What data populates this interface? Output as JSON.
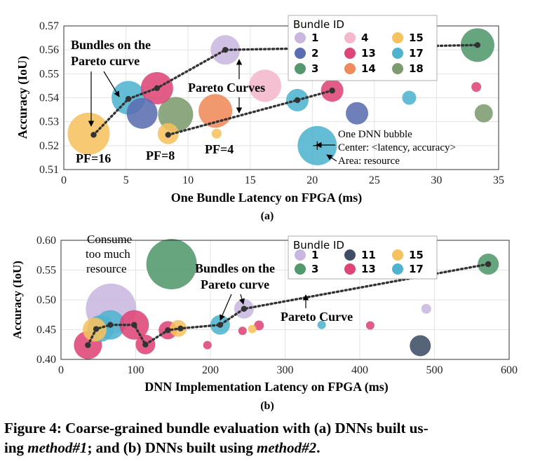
{
  "chart_data": [
    {
      "type": "scatter",
      "subplot_label": "(a)",
      "xlabel": "One Bundle Latency on FPGA (ms)",
      "ylabel": "Accuracy (IoU)",
      "xlim": [
        0,
        35
      ],
      "ylim": [
        0.51,
        0.57
      ],
      "xticks": [
        "0",
        "5",
        "10",
        "15",
        "20",
        "25",
        "30",
        "35"
      ],
      "yticks": [
        "0.51",
        "0.52",
        "0.53",
        "0.54",
        "0.55",
        "0.56",
        "0.57"
      ],
      "grid": true,
      "legend": {
        "title": "Bundle ID",
        "placement": "top-right",
        "columns": 3,
        "entries": [
          {
            "id": "1",
            "color": "#c9b7e0"
          },
          {
            "id": "4",
            "color": "#f4b8cc"
          },
          {
            "id": "15",
            "color": "#f6c25e"
          },
          {
            "id": "2",
            "color": "#5a6db0"
          },
          {
            "id": "13",
            "color": "#dd4676"
          },
          {
            "id": "17",
            "color": "#4fb3cf"
          },
          {
            "id": "3",
            "color": "#52996d"
          },
          {
            "id": "14",
            "color": "#f08a5b"
          },
          {
            "id": "18",
            "color": "#7d9b6e"
          }
        ]
      },
      "points": [
        {
          "x": 2.0,
          "y": 0.525,
          "bundle": "15",
          "size": 30
        },
        {
          "x": 5.2,
          "y": 0.54,
          "bundle": "17",
          "size": 24
        },
        {
          "x": 6.3,
          "y": 0.5335,
          "bundle": "2",
          "size": 22
        },
        {
          "x": 7.5,
          "y": 0.544,
          "bundle": "13",
          "size": 23
        },
        {
          "x": 9.0,
          "y": 0.533,
          "bundle": "18",
          "size": 25
        },
        {
          "x": 8.4,
          "y": 0.525,
          "bundle": "15",
          "size": 15
        },
        {
          "x": 12.2,
          "y": 0.5345,
          "bundle": "14",
          "size": 24
        },
        {
          "x": 12.3,
          "y": 0.525,
          "bundle": "15",
          "size": 7
        },
        {
          "x": 13.0,
          "y": 0.56,
          "bundle": "1",
          "size": 21
        },
        {
          "x": 16.2,
          "y": 0.545,
          "bundle": "4",
          "size": 23
        },
        {
          "x": 18.8,
          "y": 0.539,
          "bundle": "17",
          "size": 16
        },
        {
          "x": 21.6,
          "y": 0.543,
          "bundle": "13",
          "size": 16
        },
        {
          "x": 20.4,
          "y": 0.52,
          "bundle": "17",
          "size": 28
        },
        {
          "x": 23.6,
          "y": 0.5335,
          "bundle": "2",
          "size": 16
        },
        {
          "x": 27.8,
          "y": 0.54,
          "bundle": "17",
          "size": 10
        },
        {
          "x": 33.2,
          "y": 0.5445,
          "bundle": "13",
          "size": 7
        },
        {
          "x": 33.3,
          "y": 0.562,
          "bundle": "3",
          "size": 24
        },
        {
          "x": 33.8,
          "y": 0.5335,
          "bundle": "18",
          "size": 13
        }
      ],
      "pareto_curves": [
        [
          [
            2.4,
            0.5245
          ],
          [
            5.2,
            0.5395
          ],
          [
            7.5,
            0.544
          ],
          [
            13.0,
            0.56
          ],
          [
            33.3,
            0.562
          ]
        ],
        [
          [
            8.4,
            0.5245
          ],
          [
            18.8,
            0.539
          ],
          [
            21.6,
            0.543
          ]
        ]
      ],
      "annotations": {
        "bundles_pareto_line1": "Bundles on the",
        "bundles_pareto_line2": "Pareto curve",
        "pareto_curves": "Pareto Curves",
        "pf16": "PF=16",
        "pf8": "PF=8",
        "pf4": "PF=4",
        "bubble_line1": "One DNN bubble",
        "bubble_line2": "Center: <latency, accuracy>",
        "bubble_line3": "Area: resource"
      }
    },
    {
      "type": "scatter",
      "subplot_label": "(b)",
      "xlabel": "DNN Implementation Latency on FPGA (ms)",
      "ylabel": "Accuracy (IoU)",
      "xlim": [
        0,
        600
      ],
      "ylim": [
        0.4,
        0.6
      ],
      "xticks": [
        "0",
        "100",
        "200",
        "300",
        "400",
        "500",
        "600"
      ],
      "yticks": [
        "0.40",
        "0.45",
        "0.50",
        "0.55",
        "0.60"
      ],
      "grid": true,
      "legend": {
        "title": "Bundle ID",
        "placement": "top-right",
        "columns": 3,
        "entries": [
          {
            "id": "1",
            "color": "#c9b7e0"
          },
          {
            "id": "11",
            "color": "#3f4e66"
          },
          {
            "id": "15",
            "color": "#f6c25e"
          },
          {
            "id": "3",
            "color": "#52996d"
          },
          {
            "id": "13",
            "color": "#dd4676"
          },
          {
            "id": "17",
            "color": "#4fb3cf"
          }
        ]
      },
      "points": [
        {
          "x": 67,
          "y": 0.485,
          "bundle": "1",
          "size": 36
        },
        {
          "x": 148,
          "y": 0.56,
          "bundle": "3",
          "size": 36
        },
        {
          "x": 36,
          "y": 0.424,
          "bundle": "13",
          "size": 20
        },
        {
          "x": 45,
          "y": 0.45,
          "bundle": "15",
          "size": 17
        },
        {
          "x": 53,
          "y": 0.452,
          "bundle": "17",
          "size": 19
        },
        {
          "x": 66,
          "y": 0.458,
          "bundle": "17",
          "size": 21
        },
        {
          "x": 98,
          "y": 0.458,
          "bundle": "13",
          "size": 21
        },
        {
          "x": 113,
          "y": 0.425,
          "bundle": "13",
          "size": 14
        },
        {
          "x": 143,
          "y": 0.449,
          "bundle": "13",
          "size": 13
        },
        {
          "x": 157,
          "y": 0.452,
          "bundle": "15",
          "size": 12
        },
        {
          "x": 196,
          "y": 0.424,
          "bundle": "13",
          "size": 6
        },
        {
          "x": 213,
          "y": 0.458,
          "bundle": "17",
          "size": 14
        },
        {
          "x": 245,
          "y": 0.485,
          "bundle": "1",
          "size": 14
        },
        {
          "x": 243,
          "y": 0.448,
          "bundle": "13",
          "size": 6
        },
        {
          "x": 256,
          "y": 0.451,
          "bundle": "15",
          "size": 6
        },
        {
          "x": 265,
          "y": 0.457,
          "bundle": "13",
          "size": 7
        },
        {
          "x": 349,
          "y": 0.458,
          "bundle": "17",
          "size": 6
        },
        {
          "x": 414,
          "y": 0.457,
          "bundle": "13",
          "size": 6
        },
        {
          "x": 481,
          "y": 0.423,
          "bundle": "11",
          "size": 15
        },
        {
          "x": 489,
          "y": 0.485,
          "bundle": "1",
          "size": 7
        },
        {
          "x": 572,
          "y": 0.56,
          "bundle": "3",
          "size": 15
        }
      ],
      "pareto_curves": [
        [
          [
            36,
            0.424
          ],
          [
            47,
            0.451
          ],
          [
            66,
            0.458
          ],
          [
            98,
            0.458
          ],
          [
            113,
            0.425
          ],
          [
            143,
            0.449
          ],
          [
            160,
            0.452
          ],
          [
            213,
            0.458
          ],
          [
            245,
            0.485
          ],
          [
            572,
            0.56
          ]
        ]
      ],
      "annotations": {
        "consume_line1": "Consume",
        "consume_line2": "too much",
        "consume_line3": "resource",
        "bundles_pareto_line1": "Bundles on the",
        "bundles_pareto_line2": "Pareto curve",
        "pareto_curve": "Pareto Curve"
      }
    }
  ],
  "caption": {
    "text1": "Figure 4: Coarse-grained bundle evaluation with (a) DNNs built us-",
    "text2a": "ing ",
    "method1": "method#1",
    "text2b": "; and (b) DNNs built using ",
    "method2": "method#2",
    "text2c": "."
  }
}
